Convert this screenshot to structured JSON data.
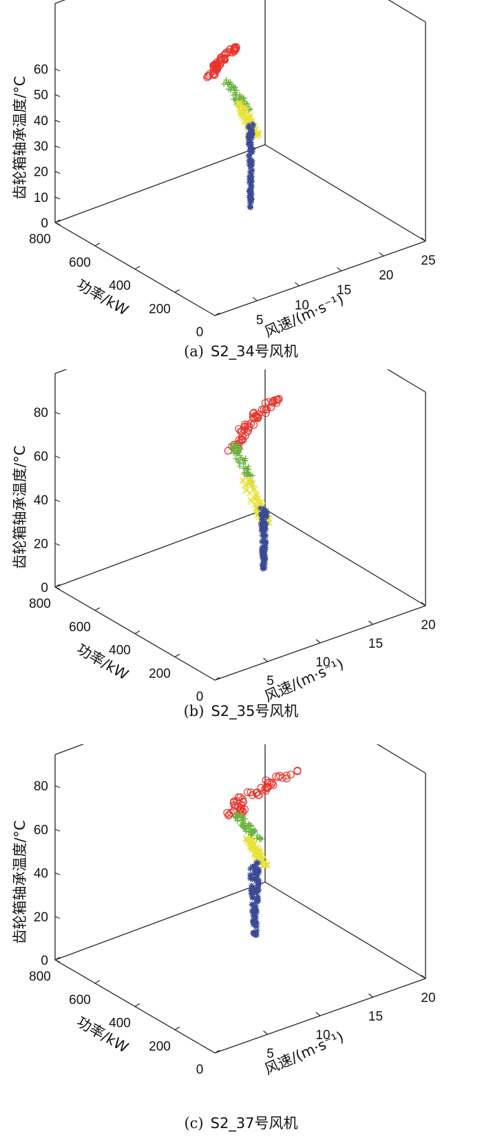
{
  "chart_data": [
    {
      "type": "scatter",
      "caption_letter": "(a)",
      "caption_text": "S2_34号风机",
      "zlabel": "齿轮箱轴承温度/°C",
      "xlabel": "风速/(m·s⁻¹)",
      "ylabel": "功率/kW",
      "x_ticks": [
        "5",
        "10",
        "15",
        "20",
        "25"
      ],
      "y_ticks": [
        "800",
        "600",
        "400",
        "200",
        "0"
      ],
      "z_ticks": [
        "0",
        "10",
        "20",
        "30",
        "40",
        "50",
        "60"
      ],
      "xlim": [
        0,
        25
      ],
      "ylim": [
        0,
        800
      ],
      "zlim": [
        0,
        60
      ],
      "series": [
        {
          "marker": "circle",
          "color": "#e8332a",
          "z_range": [
            54,
            66
          ]
        },
        {
          "marker": "plus",
          "color": "#6ab23e",
          "z_range": [
            41,
            53
          ]
        },
        {
          "marker": "x",
          "color": "#e8e23b",
          "z_range": [
            31,
            45
          ]
        },
        {
          "marker": "asterisk",
          "color": "#3b4a94",
          "z_range": [
            3,
            36
          ]
        }
      ]
    },
    {
      "type": "scatter",
      "caption_letter": "(b)",
      "caption_text": "S2_35号风机",
      "zlabel": "齿轮箱轴承温度/°C",
      "xlabel": "风速/(m·s⁻¹)",
      "ylabel": "功率/kW",
      "x_ticks": [
        "5",
        "10",
        "15",
        "20"
      ],
      "y_ticks": [
        "800",
        "600",
        "400",
        "200",
        "0"
      ],
      "z_ticks": [
        "0",
        "20",
        "40",
        "60",
        "80"
      ],
      "xlim": [
        0,
        20
      ],
      "ylim": [
        0,
        800
      ],
      "zlim": [
        0,
        80
      ],
      "series": [
        {
          "marker": "circle",
          "color": "#e8332a",
          "z_range": [
            59,
            83
          ]
        },
        {
          "marker": "plus",
          "color": "#6ab23e",
          "z_range": [
            42,
            62
          ]
        },
        {
          "marker": "x",
          "color": "#e8e23b",
          "z_range": [
            26,
            46
          ]
        },
        {
          "marker": "asterisk",
          "color": "#3b4a94",
          "z_range": [
            5,
            33
          ]
        }
      ]
    },
    {
      "type": "scatter",
      "caption_letter": "(c)",
      "caption_text": "S2_37号风机",
      "zlabel": "齿轮箱轴承温度/°C",
      "xlabel": "风速/(m·s⁻¹)",
      "ylabel": "功率/kW",
      "x_ticks": [
        "5",
        "10",
        "15",
        "20"
      ],
      "y_ticks": [
        "800",
        "600",
        "400",
        "200",
        "0"
      ],
      "z_ticks": [
        "0",
        "20",
        "40",
        "60",
        "80"
      ],
      "xlim": [
        0,
        20
      ],
      "ylim": [
        0,
        800
      ],
      "zlim": [
        0,
        80
      ],
      "series": [
        {
          "marker": "circle",
          "color": "#e8332a",
          "z_range": [
            63,
            84
          ]
        },
        {
          "marker": "plus",
          "color": "#6ab23e",
          "z_range": [
            52,
            64
          ]
        },
        {
          "marker": "x",
          "color": "#e8e23b",
          "z_range": [
            40,
            53
          ]
        },
        {
          "marker": "asterisk",
          "color": "#3b4a94",
          "z_range": [
            8,
            42
          ]
        }
      ]
    }
  ]
}
